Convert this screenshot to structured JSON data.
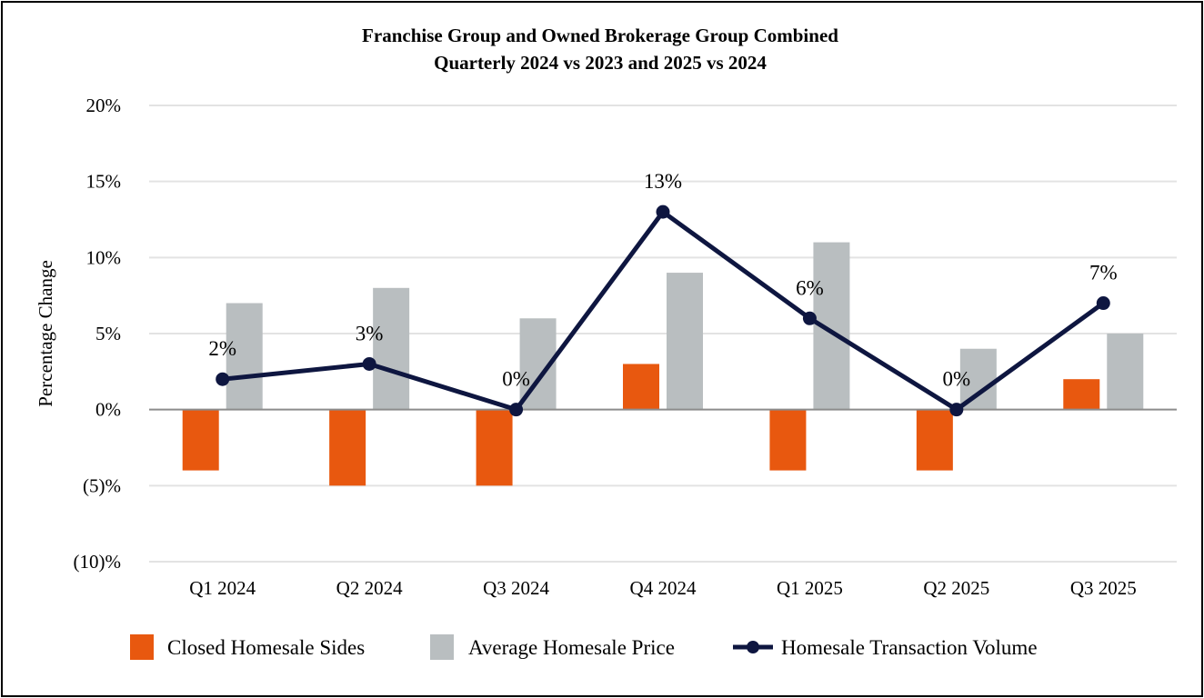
{
  "chart_data": {
    "type": "bar",
    "title": "Franchise Group and Owned Brokerage Group Combined",
    "subtitle": "Quarterly 2024 vs 2023 and 2025 vs 2024",
    "xlabel": "",
    "ylabel": "Percentage Change",
    "ylim": [
      -10,
      20
    ],
    "yticks": [
      20,
      15,
      10,
      5,
      0,
      -5,
      -10
    ],
    "ytick_labels": [
      "20%",
      "15%",
      "10%",
      "5%",
      "0%",
      "(5)%",
      "(10)%"
    ],
    "grid": true,
    "legend_position": "bottom",
    "categories": [
      "Q1 2024",
      "Q2 2024",
      "Q3 2024",
      "Q4 2024",
      "Q1 2025",
      "Q2 2025",
      "Q3 2025"
    ],
    "series": [
      {
        "name": "Closed Homesale Sides",
        "type": "bar",
        "color": "#E8580F",
        "values": [
          -4,
          -5,
          -5,
          3,
          -4,
          -4,
          2
        ]
      },
      {
        "name": "Average Homesale Price",
        "type": "bar",
        "color": "#B9BEC0",
        "values": [
          7,
          8,
          6,
          9,
          11,
          4,
          5
        ]
      },
      {
        "name": "Homesale Transaction Volume",
        "type": "line",
        "color": "#0E1640",
        "values": [
          2,
          3,
          0,
          13,
          6,
          0,
          7
        ],
        "labels": [
          "2%",
          "3%",
          "0%",
          "13%",
          "6%",
          "0%",
          "7%"
        ]
      }
    ]
  }
}
